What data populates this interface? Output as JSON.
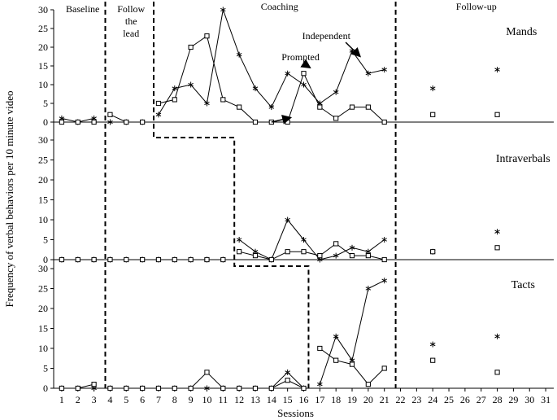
{
  "chart_data": {
    "type": "line",
    "xlabel": "Sessions",
    "ylabel": "Frequency of verbal behaviors per 10 minute video",
    "x_ticks": [
      1,
      2,
      3,
      4,
      5,
      6,
      7,
      8,
      9,
      10,
      11,
      12,
      13,
      14,
      15,
      16,
      17,
      18,
      19,
      20,
      21,
      22,
      23,
      24,
      25,
      26,
      27,
      28,
      29,
      30,
      31
    ],
    "xlim": [
      0.5,
      31.5
    ],
    "ylim": [
      0,
      30
    ],
    "y_ticks": [
      0,
      5,
      10,
      15,
      20,
      25,
      30
    ],
    "phase_labels": [
      {
        "text": "Baseline",
        "session": 2.3
      },
      {
        "text": "Follow",
        "session": 5.3
      },
      {
        "text": "the",
        "session": 5.3
      },
      {
        "text": "lead",
        "session": 5.3
      },
      {
        "text": "Coaching",
        "session": 14.5
      },
      {
        "text": "Follow-up",
        "session": 26.7
      }
    ],
    "phase_changes": {
      "mands": [
        3.7,
        6.7,
        21.7
      ],
      "intraverbals": [
        3.7,
        11.7,
        21.7
      ],
      "tacts": [
        3.7,
        16.3,
        21.7
      ]
    },
    "panels": [
      {
        "key": "mands",
        "title": "Mands",
        "series": [
          {
            "name": "Independent",
            "marker": "asterisk",
            "segments": [
              [
                [
                  1,
                  1
                ],
                [
                  2,
                  0
                ],
                [
                  3,
                  1
                ]
              ],
              [
                [
                  4,
                  0
                ],
                [
                  5,
                  0
                ],
                [
                  6,
                  0
                ]
              ],
              [
                [
                  7,
                  2
                ],
                [
                  8,
                  9
                ],
                [
                  9,
                  10
                ],
                [
                  10,
                  5
                ],
                [
                  11,
                  30
                ],
                [
                  12,
                  18
                ],
                [
                  13,
                  9
                ],
                [
                  14,
                  4
                ],
                [
                  15,
                  13
                ],
                [
                  16,
                  10
                ],
                [
                  17,
                  5
                ],
                [
                  18,
                  8
                ],
                [
                  19,
                  19
                ],
                [
                  20,
                  13
                ],
                [
                  21,
                  14
                ]
              ]
            ],
            "followup": [
              [
                24,
                9
              ],
              [
                28,
                14
              ]
            ]
          },
          {
            "name": "Prompted",
            "marker": "square",
            "segments": [
              [
                [
                  1,
                  0
                ],
                [
                  2,
                  0
                ],
                [
                  3,
                  0
                ]
              ],
              [
                [
                  4,
                  2
                ],
                [
                  5,
                  0
                ],
                [
                  6,
                  0
                ]
              ],
              [
                [
                  7,
                  5
                ],
                [
                  8,
                  6
                ],
                [
                  9,
                  20
                ],
                [
                  10,
                  23
                ],
                [
                  11,
                  6
                ],
                [
                  12,
                  4
                ],
                [
                  13,
                  0
                ],
                [
                  14,
                  0
                ],
                [
                  15,
                  0
                ],
                [
                  16,
                  13
                ],
                [
                  17,
                  4
                ],
                [
                  18,
                  1
                ],
                [
                  19,
                  4
                ],
                [
                  20,
                  4
                ],
                [
                  21,
                  0
                ]
              ]
            ],
            "followup": [
              [
                24,
                2
              ],
              [
                28,
                2
              ]
            ]
          }
        ],
        "annotations": [
          {
            "text": "Independent",
            "series": "Independent"
          },
          {
            "text": "Prompted",
            "series": "Prompted"
          }
        ]
      },
      {
        "key": "intraverbals",
        "title": "Intraverbals",
        "series": [
          {
            "name": "Independent",
            "marker": "asterisk",
            "segments": [
              [
                [
                  1,
                  0
                ],
                [
                  2,
                  0
                ],
                [
                  3,
                  0
                ]
              ],
              [
                [
                  4,
                  0
                ],
                [
                  5,
                  0
                ],
                [
                  6,
                  0
                ],
                [
                  7,
                  0
                ],
                [
                  8,
                  0
                ],
                [
                  9,
                  0
                ],
                [
                  10,
                  0
                ],
                [
                  11,
                  0
                ]
              ],
              [
                [
                  12,
                  5
                ],
                [
                  13,
                  2
                ],
                [
                  14,
                  0
                ],
                [
                  15,
                  10
                ],
                [
                  16,
                  5
                ],
                [
                  17,
                  0
                ],
                [
                  18,
                  1
                ],
                [
                  19,
                  3
                ],
                [
                  20,
                  2
                ],
                [
                  21,
                  5
                ]
              ]
            ],
            "followup": [
              [
                24,
                2
              ],
              [
                28,
                7
              ]
            ]
          },
          {
            "name": "Prompted",
            "marker": "square",
            "segments": [
              [
                [
                  1,
                  0
                ],
                [
                  2,
                  0
                ],
                [
                  3,
                  0
                ]
              ],
              [
                [
                  4,
                  0
                ],
                [
                  5,
                  0
                ],
                [
                  6,
                  0
                ],
                [
                  7,
                  0
                ],
                [
                  8,
                  0
                ],
                [
                  9,
                  0
                ],
                [
                  10,
                  0
                ],
                [
                  11,
                  0
                ]
              ],
              [
                [
                  12,
                  2
                ],
                [
                  13,
                  1
                ],
                [
                  14,
                  0
                ],
                [
                  15,
                  2
                ],
                [
                  16,
                  2
                ],
                [
                  17,
                  1
                ],
                [
                  18,
                  4
                ],
                [
                  19,
                  1
                ],
                [
                  20,
                  1
                ],
                [
                  21,
                  0
                ]
              ]
            ],
            "followup": [
              [
                24,
                2
              ],
              [
                28,
                3
              ]
            ]
          }
        ]
      },
      {
        "key": "tacts",
        "title": "Tacts",
        "series": [
          {
            "name": "Independent",
            "marker": "asterisk",
            "segments": [
              [
                [
                  1,
                  0
                ],
                [
                  2,
                  0
                ],
                [
                  3,
                  0
                ]
              ],
              [
                [
                  4,
                  0
                ],
                [
                  5,
                  0
                ],
                [
                  6,
                  0
                ],
                [
                  7,
                  0
                ],
                [
                  8,
                  0
                ],
                [
                  9,
                  0
                ],
                [
                  10,
                  0
                ],
                [
                  11,
                  0
                ],
                [
                  12,
                  0
                ],
                [
                  13,
                  0
                ],
                [
                  14,
                  0
                ],
                [
                  15,
                  4
                ],
                [
                  16,
                  0
                ]
              ],
              [
                [
                  17,
                  1
                ],
                [
                  18,
                  13
                ],
                [
                  19,
                  7
                ],
                [
                  20,
                  25
                ],
                [
                  21,
                  27
                ]
              ]
            ],
            "followup": [
              [
                24,
                11
              ],
              [
                28,
                13
              ]
            ]
          },
          {
            "name": "Prompted",
            "marker": "square",
            "segments": [
              [
                [
                  1,
                  0
                ],
                [
                  2,
                  0
                ],
                [
                  3,
                  1
                ]
              ],
              [
                [
                  4,
                  0
                ],
                [
                  5,
                  0
                ],
                [
                  6,
                  0
                ],
                [
                  7,
                  0
                ],
                [
                  8,
                  0
                ],
                [
                  9,
                  0
                ],
                [
                  10,
                  4
                ],
                [
                  11,
                  0
                ],
                [
                  12,
                  0
                ],
                [
                  13,
                  0
                ],
                [
                  14,
                  0
                ],
                [
                  15,
                  2
                ],
                [
                  16,
                  0
                ]
              ],
              [
                [
                  17,
                  10
                ],
                [
                  18,
                  7
                ],
                [
                  19,
                  6
                ],
                [
                  20,
                  1
                ],
                [
                  21,
                  5
                ]
              ]
            ],
            "followup": [
              [
                24,
                7
              ],
              [
                28,
                4
              ]
            ]
          }
        ]
      }
    ]
  }
}
